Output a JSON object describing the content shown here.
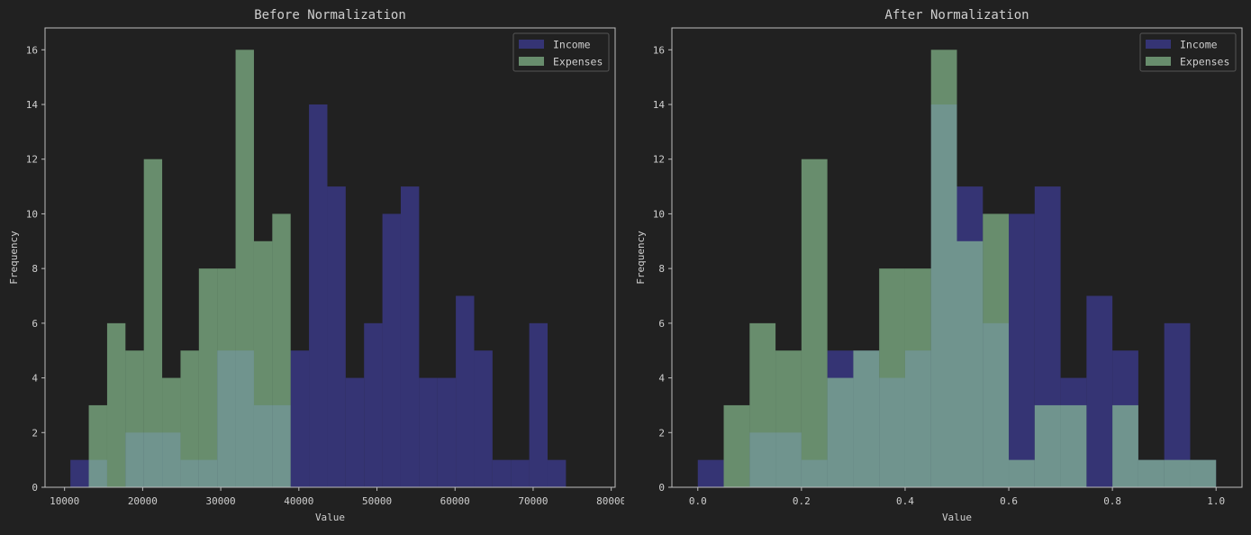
{
  "chart_data": [
    {
      "type": "bar",
      "title": "Before Normalization",
      "xlabel": "Value",
      "ylabel": "Frequency",
      "xlim": [
        7500,
        80500
      ],
      "ylim": [
        0,
        16.8
      ],
      "xticks": [
        10000,
        20000,
        30000,
        40000,
        50000,
        60000,
        70000,
        80000
      ],
      "yticks": [
        0,
        2,
        4,
        6,
        8,
        10,
        12,
        14,
        16
      ],
      "legend_position": "top-right",
      "series": [
        {
          "name": "Income",
          "color": "#3b3a8a",
          "bin_edges": [
            10750,
            13100,
            15450,
            17800,
            20150,
            22500,
            24850,
            27200,
            29550,
            31900,
            34250,
            36600,
            38950,
            41300,
            43650,
            46000,
            48350,
            50700,
            53050,
            55400,
            57750,
            60100,
            62450,
            64800,
            67150,
            69500,
            71850,
            74200,
            76550,
            78900
          ],
          "counts": [
            1,
            1,
            0,
            2,
            2,
            2,
            1,
            1,
            5,
            5,
            3,
            3,
            5,
            14,
            11,
            4,
            6,
            10,
            11,
            4,
            4,
            7,
            5,
            1,
            1,
            6,
            1,
            0,
            0
          ]
        },
        {
          "name": "Expenses",
          "color": "#98d6a0",
          "bin_edges": [
            10750,
            13100,
            15450,
            17800,
            20150,
            22500,
            24850,
            27200,
            29550,
            31900,
            34250,
            36600,
            38950,
            41300,
            43650,
            46000,
            48350,
            50700,
            53050,
            55400,
            57750,
            60100,
            62450,
            64800,
            67150,
            69500,
            71850,
            74200,
            76550,
            78900
          ],
          "counts": [
            0,
            3,
            6,
            5,
            12,
            4,
            5,
            8,
            8,
            16,
            9,
            10,
            0,
            0,
            0,
            0,
            0,
            0,
            0,
            0,
            0,
            0,
            0,
            0,
            0,
            0,
            0,
            0,
            0
          ]
        }
      ]
    },
    {
      "type": "bar",
      "title": "After Normalization",
      "xlabel": "Value",
      "ylabel": "Frequency",
      "xlim": [
        -0.05,
        1.05
      ],
      "ylim": [
        0,
        16.8
      ],
      "xticks": [
        0.0,
        0.2,
        0.4,
        0.6,
        0.8,
        1.0
      ],
      "xtick_labels": [
        "0.0",
        "0.2",
        "0.4",
        "0.6",
        "0.8",
        "1.0"
      ],
      "yticks": [
        0,
        2,
        4,
        6,
        8,
        10,
        12,
        14,
        16
      ],
      "legend_position": "top-right",
      "series": [
        {
          "name": "Income",
          "color": "#3b3a8a",
          "bin_edges": [
            0.0,
            0.05,
            0.1,
            0.15,
            0.2,
            0.25,
            0.3,
            0.35,
            0.4,
            0.45,
            0.5,
            0.55,
            0.6,
            0.65,
            0.7,
            0.75,
            0.8,
            0.85,
            0.9,
            0.95,
            1.0
          ],
          "counts": [
            1,
            0,
            2,
            2,
            1,
            5,
            5,
            4,
            5,
            14,
            11,
            6,
            10,
            11,
            4,
            7,
            5,
            1,
            6,
            1
          ]
        },
        {
          "name": "Expenses",
          "color": "#98d6a0",
          "bin_edges": [
            0.0,
            0.05,
            0.1,
            0.15,
            0.2,
            0.25,
            0.3,
            0.35,
            0.4,
            0.45,
            0.5,
            0.55,
            0.6,
            0.65,
            0.7,
            0.75,
            0.8,
            0.85,
            0.9,
            0.95,
            1.0
          ],
          "counts": [
            0,
            3,
            6,
            5,
            12,
            4,
            5,
            8,
            8,
            16,
            9,
            10,
            1,
            3,
            3,
            0,
            3,
            1,
            1,
            1
          ]
        }
      ]
    }
  ]
}
